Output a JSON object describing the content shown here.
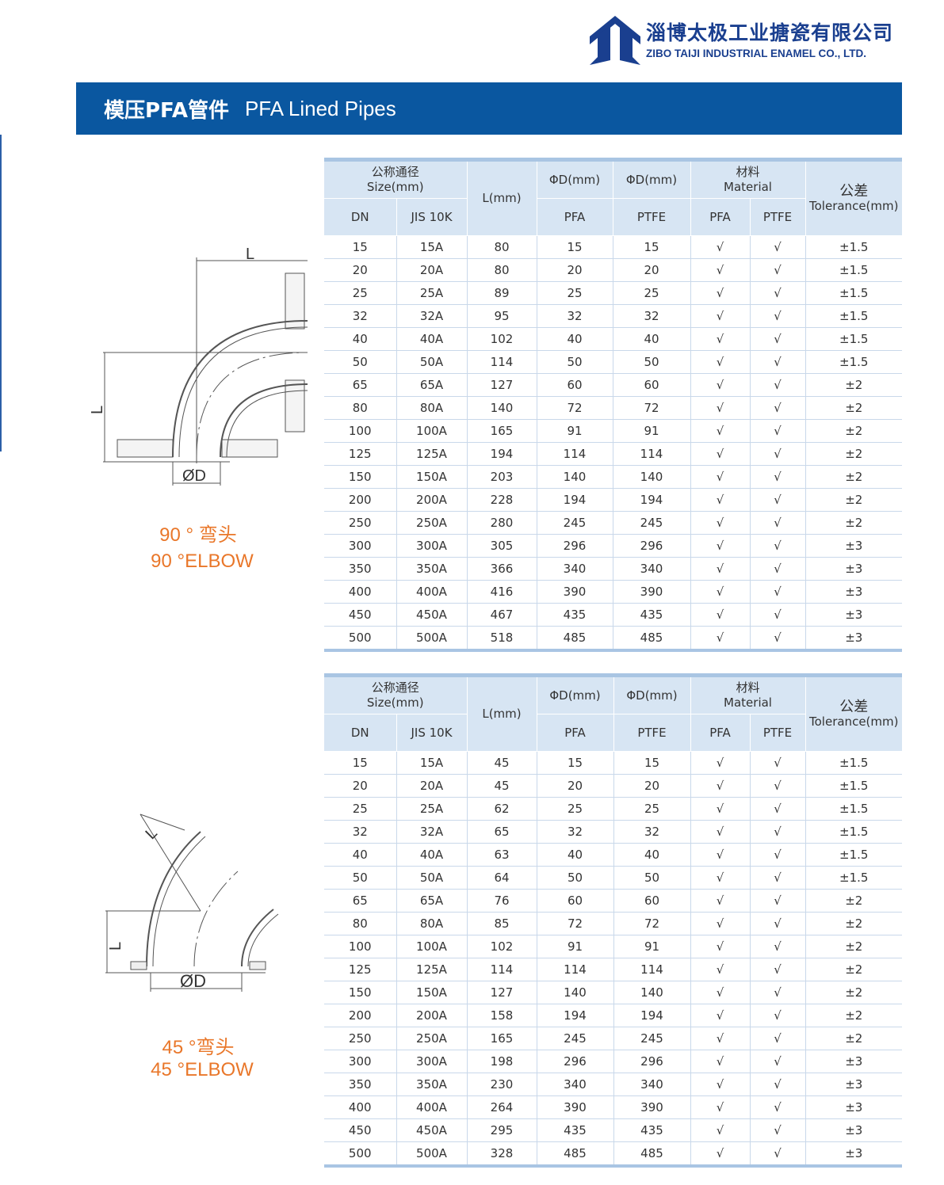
{
  "company": {
    "name_cn": "淄博太极工业搪瓷有限公司",
    "name_en": "ZIBO TAIJI INDUSTRIAL ENAMEL CO., LTD.",
    "brand_color": "#1a3f8f"
  },
  "banner": {
    "title_cn": "模压PFA管件",
    "title_en": "PFA Lined Pipes",
    "color": "#0a57a0"
  },
  "headers": {
    "size_cn": "公称通径",
    "size_en": "Size(mm)",
    "l": "L(mm)",
    "phid1": "ΦD(mm)",
    "phid2": "ΦD(mm)",
    "material_cn": "材料",
    "material_en": "Material",
    "tol_cn": "公差",
    "tol_en": "Tolerance(mm)",
    "dn": "DN",
    "jis": "JIS 10K",
    "pfa": "PFA",
    "ptfe": "PTFE",
    "mpfa": "PFA",
    "mptfe": "PTFE"
  },
  "elbow90": {
    "caption_cn": "90 °  弯头",
    "caption_en": "90 °ELBOW",
    "dim_l": "L",
    "dim_d": "ØD",
    "rows": [
      [
        "15",
        "15A",
        "80",
        "15",
        "15",
        "√",
        "√",
        "±1.5"
      ],
      [
        "20",
        "20A",
        "80",
        "20",
        "20",
        "√",
        "√",
        "±1.5"
      ],
      [
        "25",
        "25A",
        "89",
        "25",
        "25",
        "√",
        "√",
        "±1.5"
      ],
      [
        "32",
        "32A",
        "95",
        "32",
        "32",
        "√",
        "√",
        "±1.5"
      ],
      [
        "40",
        "40A",
        "102",
        "40",
        "40",
        "√",
        "√",
        "±1.5"
      ],
      [
        "50",
        "50A",
        "114",
        "50",
        "50",
        "√",
        "√",
        "±1.5"
      ],
      [
        "65",
        "65A",
        "127",
        "60",
        "60",
        "√",
        "√",
        "±2"
      ],
      [
        "80",
        "80A",
        "140",
        "72",
        "72",
        "√",
        "√",
        "±2"
      ],
      [
        "100",
        "100A",
        "165",
        "91",
        "91",
        "√",
        "√",
        "±2"
      ],
      [
        "125",
        "125A",
        "194",
        "114",
        "114",
        "√",
        "√",
        "±2"
      ],
      [
        "150",
        "150A",
        "203",
        "140",
        "140",
        "√",
        "√",
        "±2"
      ],
      [
        "200",
        "200A",
        "228",
        "194",
        "194",
        "√",
        "√",
        "±2"
      ],
      [
        "250",
        "250A",
        "280",
        "245",
        "245",
        "√",
        "√",
        "±2"
      ],
      [
        "300",
        "300A",
        "305",
        "296",
        "296",
        "√",
        "√",
        "±3"
      ],
      [
        "350",
        "350A",
        "366",
        "340",
        "340",
        "√",
        "√",
        "±3"
      ],
      [
        "400",
        "400A",
        "416",
        "390",
        "390",
        "√",
        "√",
        "±3"
      ],
      [
        "450",
        "450A",
        "467",
        "435",
        "435",
        "√",
        "√",
        "±3"
      ],
      [
        "500",
        "500A",
        "518",
        "485",
        "485",
        "√",
        "√",
        "±3"
      ]
    ]
  },
  "elbow45": {
    "caption_cn": "45 °弯头",
    "caption_en": "45 °ELBOW",
    "dim_l": "L",
    "dim_d": "ØD",
    "rows": [
      [
        "15",
        "15A",
        "45",
        "15",
        "15",
        "√",
        "√",
        "±1.5"
      ],
      [
        "20",
        "20A",
        "45",
        "20",
        "20",
        "√",
        "√",
        "±1.5"
      ],
      [
        "25",
        "25A",
        "62",
        "25",
        "25",
        "√",
        "√",
        "±1.5"
      ],
      [
        "32",
        "32A",
        "65",
        "32",
        "32",
        "√",
        "√",
        "±1.5"
      ],
      [
        "40",
        "40A",
        "63",
        "40",
        "40",
        "√",
        "√",
        "±1.5"
      ],
      [
        "50",
        "50A",
        "64",
        "50",
        "50",
        "√",
        "√",
        "±1.5"
      ],
      [
        "65",
        "65A",
        "76",
        "60",
        "60",
        "√",
        "√",
        "±2"
      ],
      [
        "80",
        "80A",
        "85",
        "72",
        "72",
        "√",
        "√",
        "±2"
      ],
      [
        "100",
        "100A",
        "102",
        "91",
        "91",
        "√",
        "√",
        "±2"
      ],
      [
        "125",
        "125A",
        "114",
        "114",
        "114",
        "√",
        "√",
        "±2"
      ],
      [
        "150",
        "150A",
        "127",
        "140",
        "140",
        "√",
        "√",
        "±2"
      ],
      [
        "200",
        "200A",
        "158",
        "194",
        "194",
        "√",
        "√",
        "±2"
      ],
      [
        "250",
        "250A",
        "165",
        "245",
        "245",
        "√",
        "√",
        "±2"
      ],
      [
        "300",
        "300A",
        "198",
        "296",
        "296",
        "√",
        "√",
        "±3"
      ],
      [
        "350",
        "350A",
        "230",
        "340",
        "340",
        "√",
        "√",
        "±3"
      ],
      [
        "400",
        "400A",
        "264",
        "390",
        "390",
        "√",
        "√",
        "±3"
      ],
      [
        "450",
        "450A",
        "295",
        "435",
        "435",
        "√",
        "√",
        "±3"
      ],
      [
        "500",
        "500A",
        "328",
        "485",
        "485",
        "√",
        "√",
        "±3"
      ]
    ]
  },
  "accent": "#e9772a"
}
